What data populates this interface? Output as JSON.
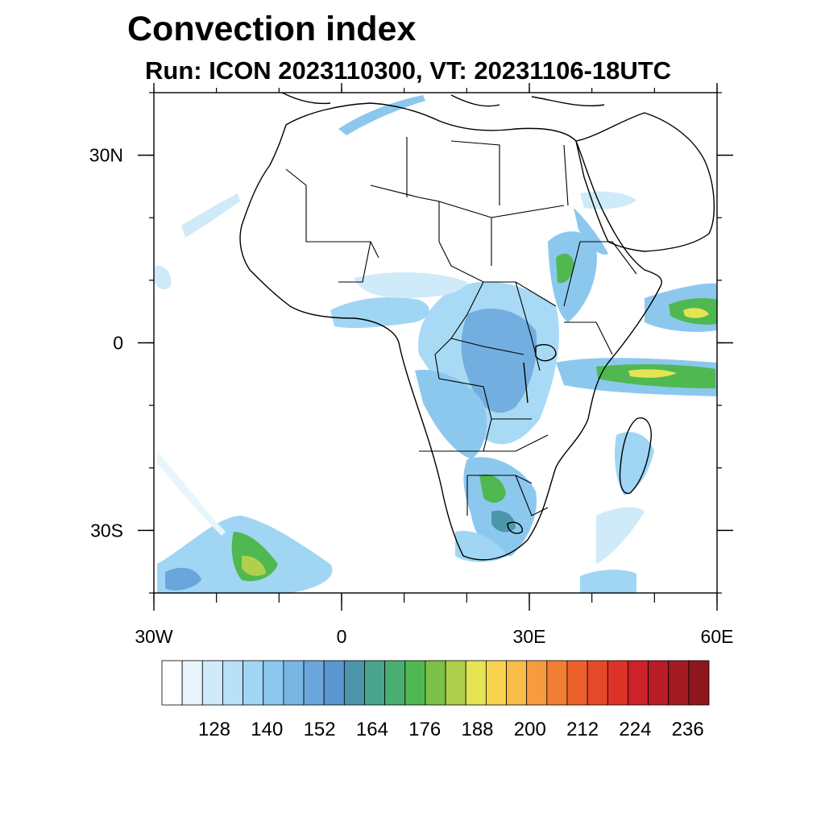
{
  "title": "Convection index",
  "subtitle": "Run: ICON 2023110300,  VT: 20231106-18UTC",
  "map": {
    "lon_range": [
      -30,
      60
    ],
    "lat_range": [
      -40,
      40
    ],
    "lon_ticks": [
      {
        "lon": -30,
        "label": "30W"
      },
      {
        "lon": 0,
        "label": "0"
      },
      {
        "lon": 30,
        "label": "30E"
      },
      {
        "lon": 60,
        "label": "60E"
      }
    ],
    "lat_ticks": [
      {
        "lat": 30,
        "label": "30N"
      },
      {
        "lat": 0,
        "label": "0"
      },
      {
        "lat": -30,
        "label": "30S"
      }
    ]
  },
  "colorbar": {
    "colors": [
      "#ffffff",
      "#e8f5fc",
      "#cfeaf8",
      "#b8e0f6",
      "#a0d6f4",
      "#8cc8ee",
      "#78b6e4",
      "#6aa6dc",
      "#5a96d0",
      "#4c96ac",
      "#48a48c",
      "#4aae72",
      "#50b850",
      "#7cc048",
      "#aed04c",
      "#e4e454",
      "#f8d44e",
      "#f8bc48",
      "#f69c3e",
      "#f27e34",
      "#ec602c",
      "#e44a28",
      "#dc3228",
      "#cc2228",
      "#b81c26",
      "#a41a22",
      "#8e161e"
    ],
    "labels": [
      "128",
      "140",
      "152",
      "164",
      "176",
      "188",
      "200",
      "212",
      "224",
      "236"
    ]
  },
  "field_colors": {
    "light": "#cfeaf8",
    "mid": "#8cc8ee",
    "dark": "#6aa6dc",
    "teal": "#4c96ac",
    "green": "#50b850",
    "yellowgreen": "#aed04c",
    "yellow": "#e4e454",
    "orange": "#f69c3e",
    "red": "#dc3228"
  }
}
